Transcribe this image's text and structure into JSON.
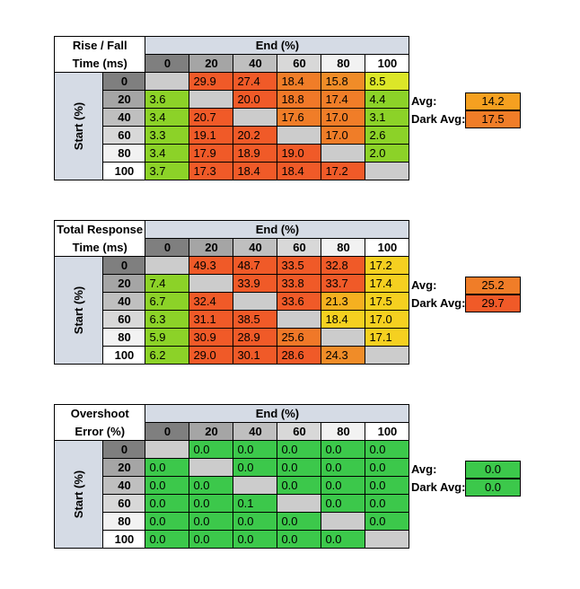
{
  "colors": {
    "header_bg": "#d5dbe5",
    "diag": "#cccccc",
    "shade_0": "#7f7f7f",
    "shade_20": "#a5a5a5",
    "shade_40": "#bfbfbf",
    "shade_60": "#d8d8d8",
    "shade_80": "#f2f2f2",
    "shade_100": "#ffffff"
  },
  "chart_data": [
    {
      "type": "heatmap",
      "corner_line1": "Rise / Fall",
      "corner_line2": "Time (ms)",
      "col_title": "End (%)",
      "row_title": "Start (%)",
      "columns": [
        "0",
        "20",
        "40",
        "60",
        "80",
        "100"
      ],
      "rows": [
        "0",
        "20",
        "40",
        "60",
        "80",
        "100"
      ],
      "values": [
        [
          null,
          "29.9",
          "27.4",
          "18.4",
          "15.8",
          "8.5"
        ],
        [
          "3.6",
          null,
          "20.0",
          "18.8",
          "17.4",
          "4.4"
        ],
        [
          "3.4",
          "20.7",
          null,
          "17.6",
          "17.0",
          "3.1"
        ],
        [
          "3.3",
          "19.1",
          "20.2",
          null,
          "17.0",
          "2.6"
        ],
        [
          "3.4",
          "17.9",
          "18.9",
          "19.0",
          null,
          "2.0"
        ],
        [
          "3.7",
          "17.3",
          "18.4",
          "18.4",
          "17.2",
          null
        ]
      ],
      "colors": [
        [
          null,
          "#f05a28",
          "#f05a28",
          "#f07d28",
          "#f08c28",
          "#dce628"
        ],
        [
          "#8cd228",
          null,
          "#f05a28",
          "#f07828",
          "#f07d28",
          "#8cd228"
        ],
        [
          "#8cd228",
          "#f05a28",
          null,
          "#f07d28",
          "#f07d28",
          "#8cd228"
        ],
        [
          "#8cd228",
          "#f05a28",
          "#f05a28",
          null,
          "#f07d28",
          "#8cd228"
        ],
        [
          "#8cd228",
          "#f05a28",
          "#f05a28",
          "#f05a28",
          null,
          "#8cd228"
        ],
        [
          "#8cd228",
          "#f05a28",
          "#f05a28",
          "#f05a28",
          "#f05a28",
          null
        ]
      ],
      "avg_label": "Avg:",
      "avg_value": "14.2",
      "avg_color": "#f5a020",
      "dark_avg_label": "Dark Avg:",
      "dark_avg_value": "17.5",
      "dark_avg_color": "#f07d28"
    },
    {
      "type": "heatmap",
      "corner_line1": "Total Response",
      "corner_line2": "Time (ms)",
      "col_title": "End (%)",
      "row_title": "Start (%)",
      "columns": [
        "0",
        "20",
        "40",
        "60",
        "80",
        "100"
      ],
      "rows": [
        "0",
        "20",
        "40",
        "60",
        "80",
        "100"
      ],
      "values": [
        [
          null,
          "49.3",
          "48.7",
          "33.5",
          "32.8",
          "17.2"
        ],
        [
          "7.4",
          null,
          "33.9",
          "33.8",
          "33.7",
          "17.4"
        ],
        [
          "6.7",
          "32.4",
          null,
          "33.6",
          "21.3",
          "17.5"
        ],
        [
          "6.3",
          "31.1",
          "38.5",
          null,
          "18.4",
          "17.0"
        ],
        [
          "5.9",
          "30.9",
          "28.9",
          "25.6",
          null,
          "17.1"
        ],
        [
          "6.2",
          "29.0",
          "30.1",
          "28.6",
          "24.3",
          null
        ]
      ],
      "colors": [
        [
          null,
          "#f05a28",
          "#f05a28",
          "#f05a28",
          "#f05a28",
          "#f5d020"
        ],
        [
          "#8cd228",
          null,
          "#f05a28",
          "#f05a28",
          "#f05a28",
          "#f5d020"
        ],
        [
          "#8cd228",
          "#f05a28",
          null,
          "#f05a28",
          "#f5b020",
          "#f5d020"
        ],
        [
          "#8cd228",
          "#f05a28",
          "#f05a28",
          null,
          "#f5d020",
          "#f5d020"
        ],
        [
          "#8cd228",
          "#f05a28",
          "#f05a28",
          "#f07828",
          null,
          "#f5d020"
        ],
        [
          "#8cd228",
          "#f05a28",
          "#f05a28",
          "#f05a28",
          "#f08c28",
          null
        ]
      ],
      "avg_label": "Avg:",
      "avg_value": "25.2",
      "avg_color": "#f07d28",
      "dark_avg_label": "Dark Avg:",
      "dark_avg_value": "29.7",
      "dark_avg_color": "#f05a28"
    },
    {
      "type": "heatmap",
      "corner_line1": "Overshoot",
      "corner_line2": "Error (%)",
      "col_title": "End (%)",
      "row_title": "Start (%)",
      "columns": [
        "0",
        "20",
        "40",
        "60",
        "80",
        "100"
      ],
      "rows": [
        "0",
        "20",
        "40",
        "60",
        "80",
        "100"
      ],
      "values": [
        [
          null,
          "0.0",
          "0.0",
          "0.0",
          "0.0",
          "0.0"
        ],
        [
          "0.0",
          null,
          "0.0",
          "0.0",
          "0.0",
          "0.0"
        ],
        [
          "0.0",
          "0.0",
          null,
          "0.0",
          "0.0",
          "0.0"
        ],
        [
          "0.0",
          "0.0",
          "0.1",
          null,
          "0.0",
          "0.0"
        ],
        [
          "0.0",
          "0.0",
          "0.0",
          "0.0",
          null,
          "0.0"
        ],
        [
          "0.0",
          "0.0",
          "0.0",
          "0.0",
          "0.0",
          null
        ]
      ],
      "colors": [
        [
          null,
          "#3cc84b",
          "#3cc84b",
          "#3cc84b",
          "#3cc84b",
          "#3cc84b"
        ],
        [
          "#3cc84b",
          null,
          "#3cc84b",
          "#3cc84b",
          "#3cc84b",
          "#3cc84b"
        ],
        [
          "#3cc84b",
          "#3cc84b",
          null,
          "#3cc84b",
          "#3cc84b",
          "#3cc84b"
        ],
        [
          "#3cc84b",
          "#3cc84b",
          "#3cc84b",
          null,
          "#3cc84b",
          "#3cc84b"
        ],
        [
          "#3cc84b",
          "#3cc84b",
          "#3cc84b",
          "#3cc84b",
          null,
          "#3cc84b"
        ],
        [
          "#3cc84b",
          "#3cc84b",
          "#3cc84b",
          "#3cc84b",
          "#3cc84b",
          null
        ]
      ],
      "avg_label": "Avg:",
      "avg_value": "0.0",
      "avg_color": "#3cc84b",
      "dark_avg_label": "Dark Avg:",
      "dark_avg_value": "0.0",
      "dark_avg_color": "#3cc84b"
    }
  ]
}
